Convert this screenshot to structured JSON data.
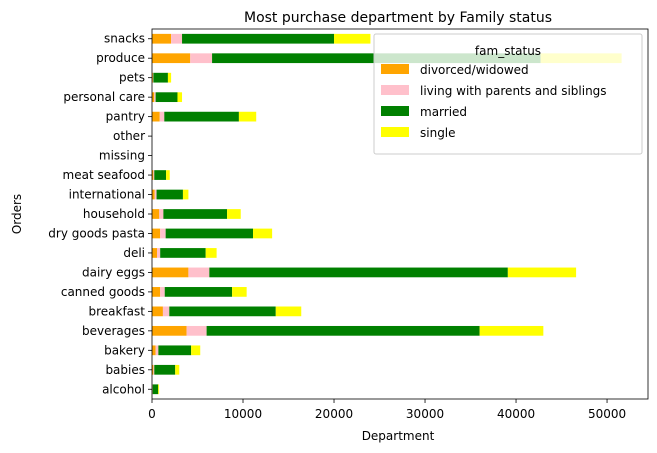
{
  "chart_data": {
    "type": "bar",
    "orientation": "horizontal",
    "stacked": true,
    "title": "Most purchase department by Family status",
    "xlabel": "Department",
    "ylabel": "Orders",
    "xlim": [
      0,
      54500
    ],
    "xticks": [
      0,
      10000,
      20000,
      30000,
      40000,
      50000
    ],
    "xtick_labels": [
      "0",
      "10000",
      "20000",
      "30000",
      "40000",
      "50000"
    ],
    "grid": false,
    "legend": {
      "title": "fam_status",
      "placement": "upper-right"
    },
    "categories": [
      "alcohol",
      "babies",
      "bakery",
      "beverages",
      "breakfast",
      "canned goods",
      "dairy eggs",
      "deli",
      "dry goods pasta",
      "household",
      "international",
      "meat seafood",
      "missing",
      "other",
      "pantry",
      "personal care",
      "pets",
      "produce",
      "snacks"
    ],
    "series": [
      {
        "name": "divorced/widowed",
        "color": "#ffa500",
        "values": [
          50,
          150,
          400,
          3800,
          1200,
          900,
          4000,
          550,
          900,
          800,
          300,
          150,
          0,
          0,
          850,
          250,
          100,
          4200,
          2100
        ]
      },
      {
        "name": "living with parents and siblings",
        "color": "#ffc0cb",
        "values": [
          30,
          100,
          300,
          2200,
          700,
          500,
          2300,
          350,
          600,
          450,
          200,
          100,
          0,
          0,
          500,
          150,
          50,
          2400,
          1200
        ]
      },
      {
        "name": "married",
        "color": "#008000",
        "values": [
          600,
          2300,
          3600,
          30000,
          11700,
          7400,
          32800,
          5000,
          9600,
          7000,
          2900,
          1300,
          0,
          0,
          8200,
          2400,
          1600,
          36100,
          16700
        ]
      },
      {
        "name": "single",
        "color": "#ffff00",
        "values": [
          100,
          450,
          1000,
          7000,
          2800,
          1600,
          7500,
          1200,
          2100,
          1500,
          600,
          400,
          0,
          0,
          1900,
          500,
          350,
          8900,
          4000
        ]
      }
    ]
  }
}
